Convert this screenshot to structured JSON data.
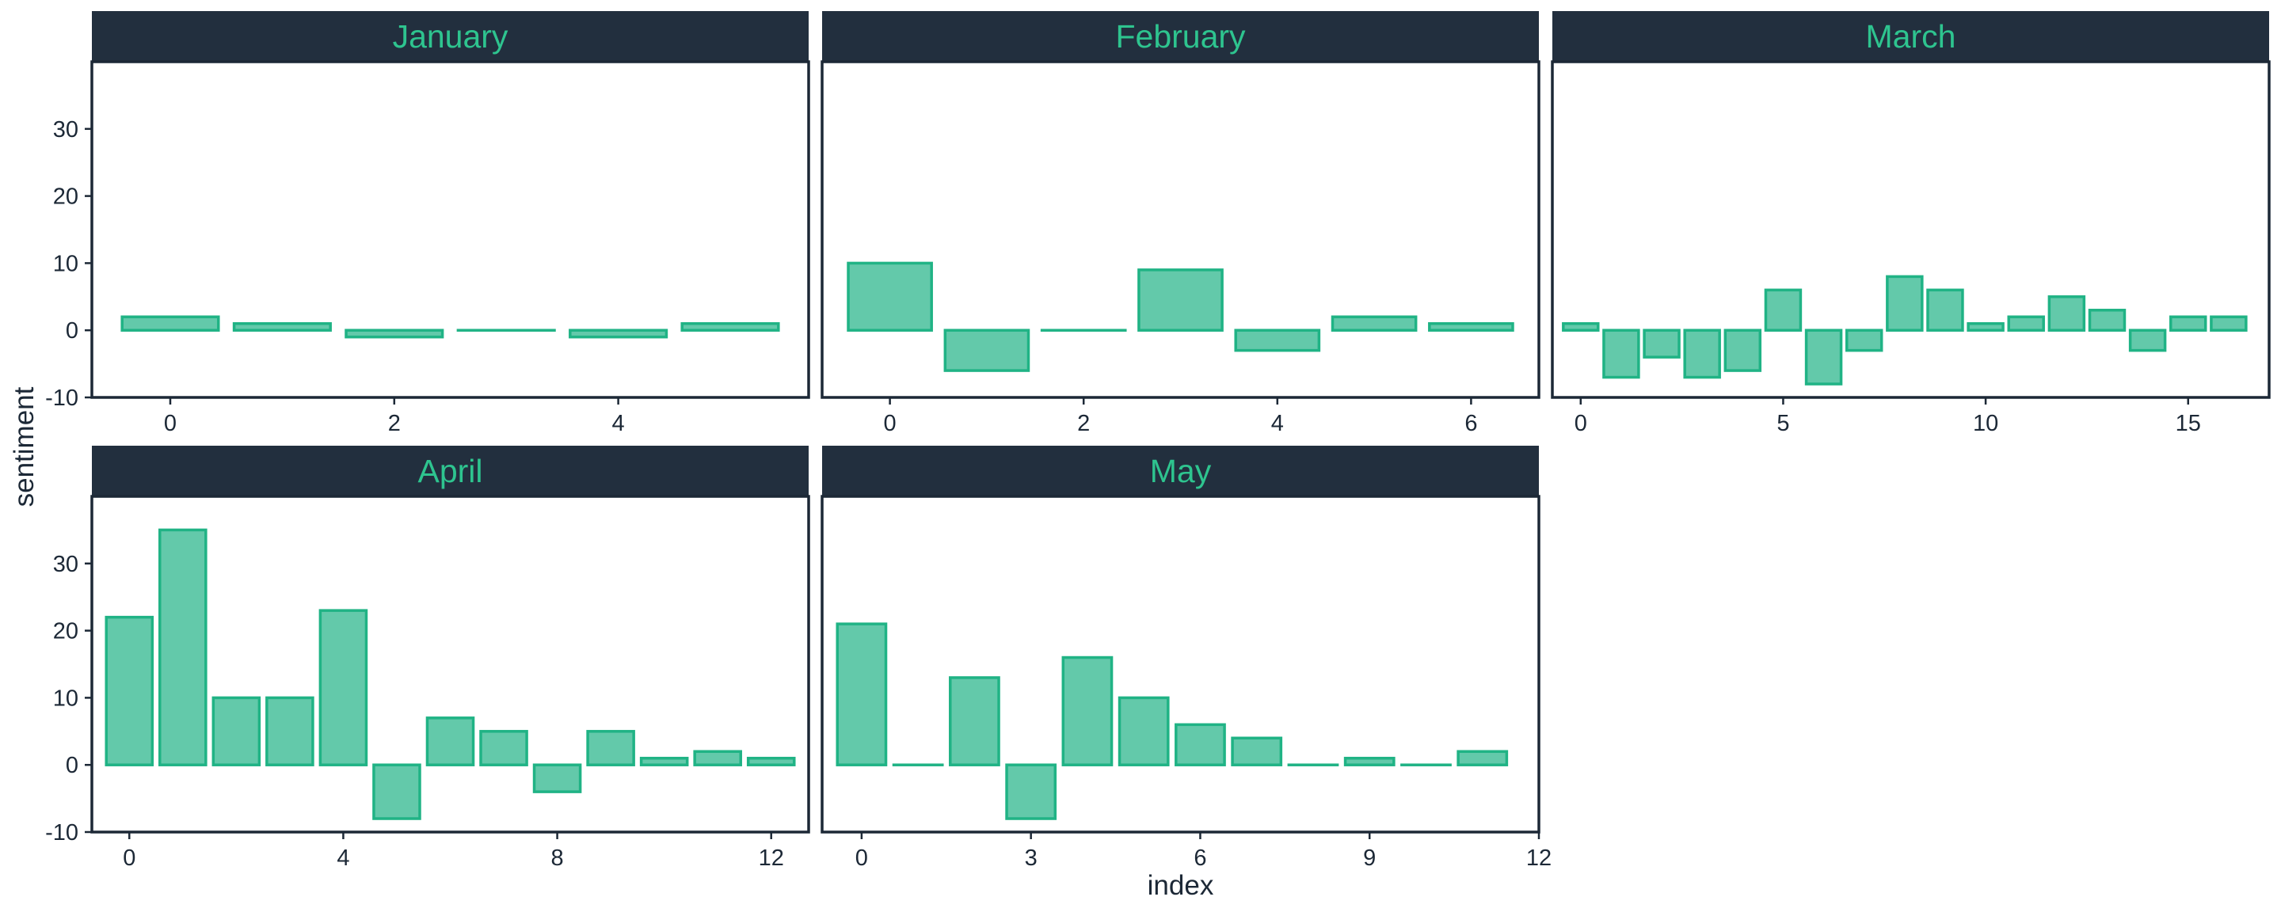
{
  "chart_data": {
    "type": "bar",
    "xlabel": "index",
    "ylabel": "sentiment",
    "ylim": [
      -10,
      40
    ],
    "y_ticks": [
      -10,
      0,
      10,
      20,
      30
    ],
    "bar_color": "#63c9aa",
    "bar_edge_color": "#20b385",
    "strip_color": "#222f3e",
    "strip_text_color": "#2ec48f",
    "facets": [
      {
        "title": "January",
        "x_range": [
          -0.7,
          5.7
        ],
        "x_ticks": [
          0,
          2,
          4
        ],
        "x": [
          0,
          1,
          2,
          3,
          4,
          5
        ],
        "values": [
          2,
          1,
          -1,
          0,
          -1,
          1
        ]
      },
      {
        "title": "February",
        "x_range": [
          -0.7,
          6.7
        ],
        "x_ticks": [
          0,
          2,
          4,
          6
        ],
        "x": [
          0,
          1,
          2,
          3,
          4,
          5,
          6
        ],
        "values": [
          10,
          -6,
          0,
          9,
          -3,
          2,
          1
        ]
      },
      {
        "title": "March",
        "x_range": [
          -0.7,
          17.0
        ],
        "x_ticks": [
          0,
          5,
          10,
          15
        ],
        "x": [
          0,
          1,
          2,
          3,
          4,
          5,
          6,
          7,
          8,
          9,
          10,
          11,
          12,
          13,
          14,
          15,
          16
        ],
        "values": [
          1,
          -7,
          -4,
          -7,
          -6,
          6,
          -8,
          -3,
          8,
          6,
          1,
          2,
          5,
          3,
          -3,
          2,
          2
        ]
      },
      {
        "title": "April",
        "x_range": [
          -0.7,
          12.7
        ],
        "x_ticks": [
          0,
          4,
          8,
          12
        ],
        "x": [
          0,
          1,
          2,
          3,
          4,
          5,
          6,
          7,
          8,
          9,
          10,
          11,
          12
        ],
        "values": [
          22,
          35,
          10,
          10,
          23,
          -8,
          7,
          5,
          -4,
          5,
          1,
          2,
          1
        ]
      },
      {
        "title": "May",
        "x_range": [
          -0.7,
          12.0
        ],
        "x_ticks": [
          0,
          3,
          6,
          9,
          12
        ],
        "x": [
          0,
          1,
          2,
          3,
          4,
          5,
          6,
          7,
          8,
          9,
          10,
          11
        ],
        "values": [
          21,
          0,
          13,
          -8,
          16,
          10,
          6,
          4,
          0,
          1,
          0,
          2
        ]
      }
    ]
  }
}
